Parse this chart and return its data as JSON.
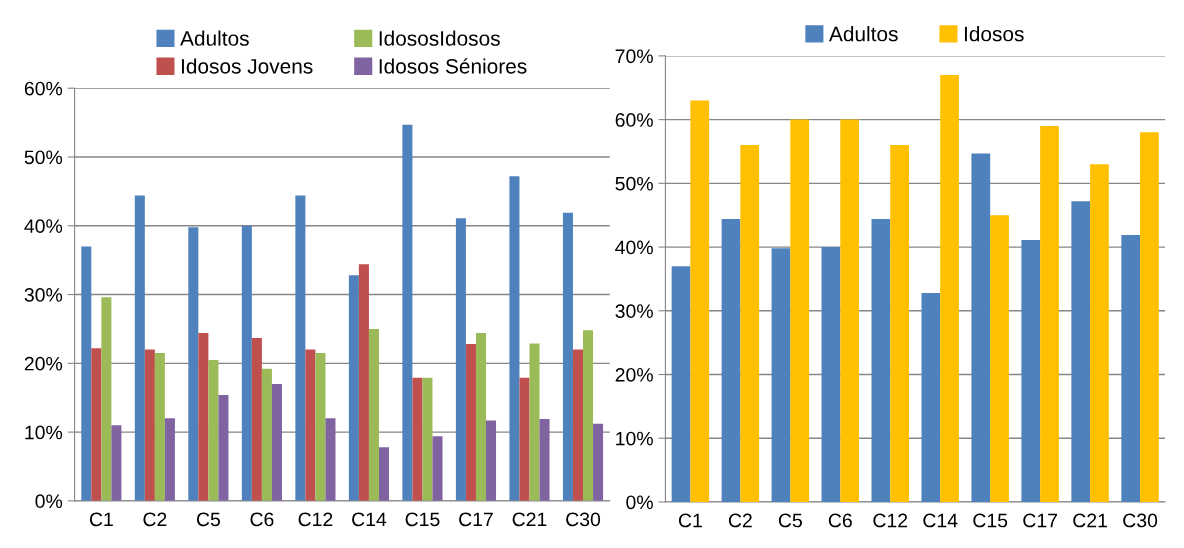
{
  "chart_data": [
    {
      "type": "bar",
      "categories": [
        "C1",
        "C2",
        "C5",
        "C6",
        "C12",
        "C14",
        "C15",
        "C17",
        "C21",
        "C30"
      ],
      "series": [
        {
          "name": "Adultos",
          "color": "#4f81bd",
          "values": [
            37,
            44.4,
            39.8,
            40,
            44.4,
            32.8,
            54.7,
            41.1,
            47.2,
            41.9
          ]
        },
        {
          "name": "Idosos Jovens",
          "color": "#c0504d",
          "values": [
            22.2,
            22,
            24.4,
            23.7,
            22,
            34.4,
            17.9,
            22.8,
            17.9,
            22
          ]
        },
        {
          "name": "IdososIdosos",
          "color": "#9bbb59",
          "values": [
            29.6,
            21.5,
            20.5,
            19.2,
            21.5,
            25,
            17.9,
            24.4,
            22.9,
            24.8
          ]
        },
        {
          "name": "Idosos Séniores",
          "color": "#8064a2",
          "values": [
            11,
            12,
            15.4,
            17,
            12,
            7.8,
            9.4,
            11.7,
            11.9,
            11.2
          ]
        }
      ],
      "ylim": [
        0,
        60
      ],
      "yticks": [
        {
          "value": 0,
          "label": "0%"
        },
        {
          "value": 10,
          "label": "10%"
        },
        {
          "value": 20,
          "label": "20%"
        },
        {
          "value": 30,
          "label": "30%"
        },
        {
          "value": 40,
          "label": "40%"
        },
        {
          "value": 50,
          "label": "50%"
        },
        {
          "value": 60,
          "label": "60%"
        }
      ],
      "grid": "y",
      "legend": "top"
    },
    {
      "type": "bar",
      "categories": [
        "C1",
        "C2",
        "C5",
        "C6",
        "C12",
        "C14",
        "C15",
        "C17",
        "C21",
        "C30"
      ],
      "series": [
        {
          "name": "Adultos",
          "color": "#4f81bd",
          "values": [
            37,
            44.4,
            39.8,
            40,
            44.4,
            32.8,
            54.7,
            41.1,
            47.2,
            41.9
          ]
        },
        {
          "name": "Idosos",
          "color": "#ffc000",
          "values": [
            63,
            56,
            60,
            60,
            56,
            67,
            45,
            59,
            53,
            58
          ]
        }
      ],
      "ylim": [
        0,
        70
      ],
      "yticks": [
        {
          "value": 0,
          "label": "0%"
        },
        {
          "value": 10,
          "label": "10%"
        },
        {
          "value": 20,
          "label": "20%"
        },
        {
          "value": 30,
          "label": "30%"
        },
        {
          "value": 40,
          "label": "40%"
        },
        {
          "value": 50,
          "label": "50%"
        },
        {
          "value": 60,
          "label": "60%"
        },
        {
          "value": 70,
          "label": "70%"
        }
      ],
      "grid": "y",
      "legend": "top"
    }
  ]
}
